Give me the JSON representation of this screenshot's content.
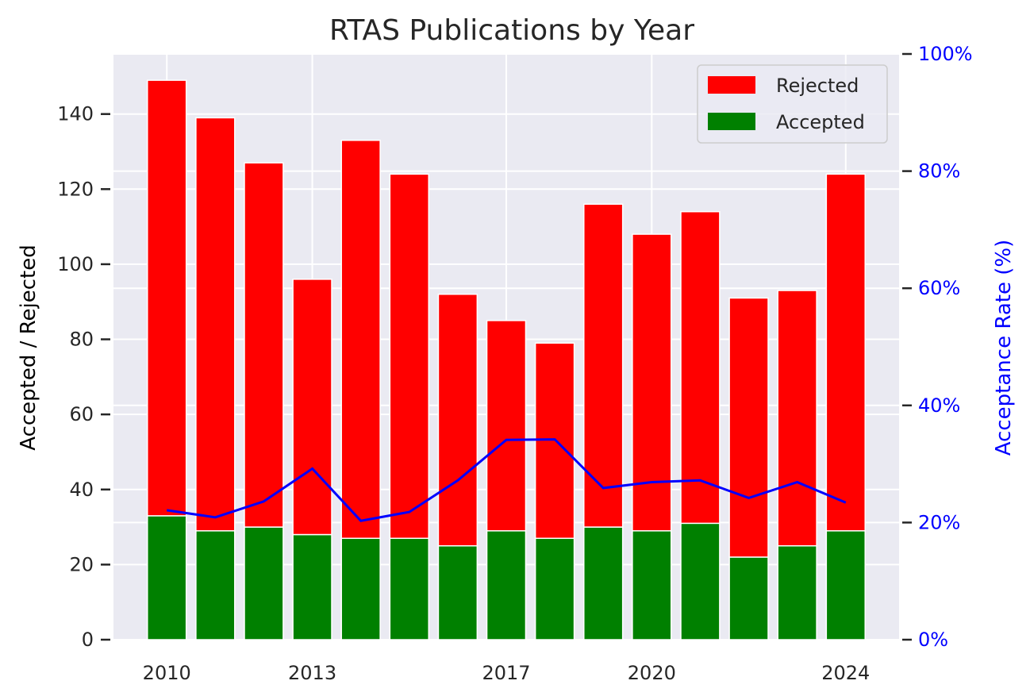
{
  "chart_data": {
    "type": "bar",
    "title": "RTAS Publications by Year",
    "x": [
      2010,
      2011,
      2012,
      2013,
      2014,
      2015,
      2016,
      2017,
      2018,
      2019,
      2020,
      2021,
      2022,
      2023,
      2024
    ],
    "x_tick_labels": [
      "2010",
      "2013",
      "2017",
      "2020",
      "2024"
    ],
    "x_ticks": [
      2010,
      2013,
      2017,
      2020,
      2024
    ],
    "ylabel": "Accepted / Rejected",
    "ylabel_right": "Acceptance Rate (%)",
    "ylim": [
      0,
      156
    ],
    "y_ticks": [
      0,
      20,
      40,
      60,
      80,
      100,
      120,
      140
    ],
    "ylim_right": [
      0,
      100
    ],
    "y_ticks_right": [
      "0%",
      "20%",
      "40%",
      "60%",
      "80%",
      "100%"
    ],
    "stacked": true,
    "series": [
      {
        "name": "Accepted",
        "color": "#008000",
        "values": [
          33,
          29,
          30,
          28,
          27,
          27,
          25,
          29,
          27,
          30,
          29,
          31,
          22,
          25,
          29
        ]
      },
      {
        "name": "Rejected",
        "color": "#ff0000",
        "values": [
          116,
          110,
          97,
          68,
          106,
          97,
          67,
          56,
          52,
          86,
          79,
          83,
          69,
          68,
          95
        ]
      }
    ],
    "line_series": {
      "color": "#0000ff",
      "axis": "right",
      "values": [
        22.1,
        20.9,
        23.6,
        29.2,
        20.3,
        21.8,
        27.2,
        34.1,
        34.2,
        25.9,
        26.9,
        27.2,
        24.2,
        26.9,
        23.4
      ]
    },
    "legend": {
      "placement": "top-right",
      "entries": [
        "Rejected",
        "Accepted"
      ]
    },
    "grid": true,
    "background": "#eaeaf2"
  }
}
